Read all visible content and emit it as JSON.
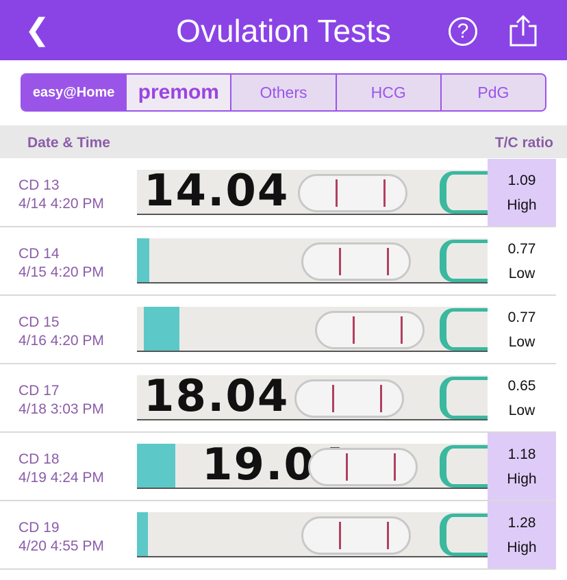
{
  "header": {
    "title": "Ovulation Tests",
    "back_icon": "chevron-left-icon",
    "help_icon": "question-circle-icon",
    "share_icon": "share-icon",
    "color": "#8a44e6"
  },
  "tabs": [
    {
      "label": "easy@Home",
      "selected": true
    },
    {
      "label": "premom"
    },
    {
      "label": "Others"
    },
    {
      "label": "HCG"
    },
    {
      "label": "PdG"
    }
  ],
  "columns": {
    "left": "Date & Time",
    "right": "T/C ratio"
  },
  "rows": [
    {
      "cd": "CD 13",
      "datetime": "4/14 4:20 PM",
      "ratio": "1.09",
      "level": "High",
      "strip_note": "14.04"
    },
    {
      "cd": "CD 14",
      "datetime": "4/15 4:20 PM",
      "ratio": "0.77",
      "level": "Low",
      "strip_note": ""
    },
    {
      "cd": "CD 15",
      "datetime": "4/16 4:20 PM",
      "ratio": "0.77",
      "level": "Low",
      "strip_note": ""
    },
    {
      "cd": "CD 17",
      "datetime": "4/18 3:03 PM",
      "ratio": "0.65",
      "level": "Low",
      "strip_note": "18.04"
    },
    {
      "cd": "CD 18",
      "datetime": "4/19 4:24 PM",
      "ratio": "1.18",
      "level": "High",
      "strip_note": "19.04"
    },
    {
      "cd": "CD 19",
      "datetime": "4/20 4:55 PM",
      "ratio": "1.28",
      "level": "High",
      "strip_note": ""
    }
  ],
  "colors": {
    "high_bg": "#dfcbf8",
    "accent": "#9a55e8",
    "teal": "#5cc8c8"
  }
}
